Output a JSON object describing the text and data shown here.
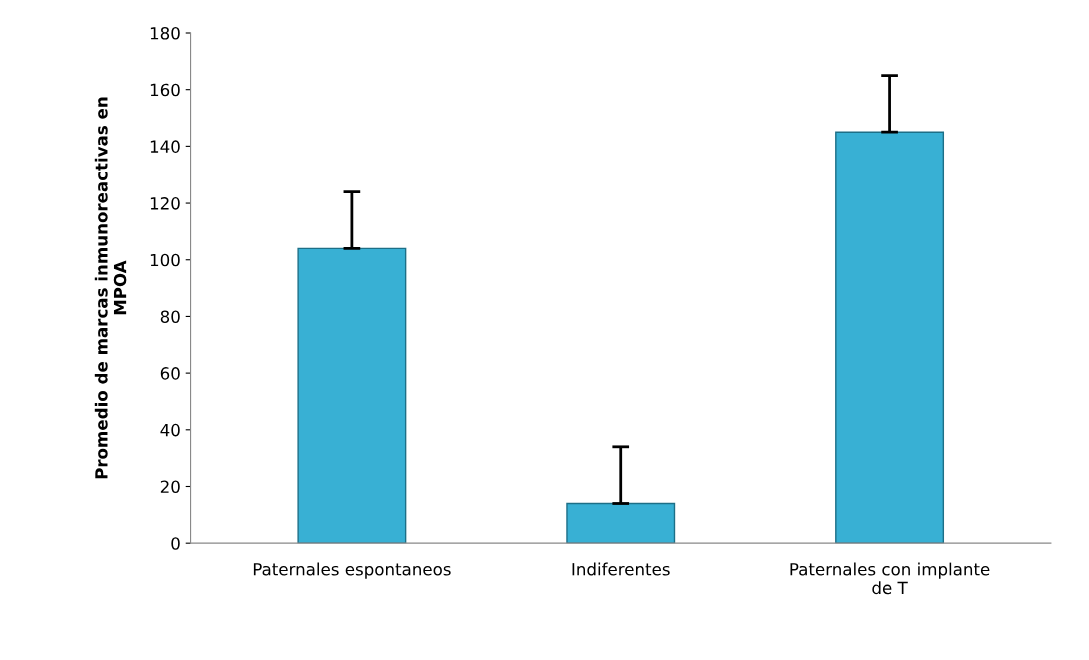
{
  "chart_data": {
    "type": "bar",
    "ylabel": "Promedio de marcas inmunoreactivas en\nMPOA",
    "categories": [
      "Paternales espontaneos",
      "Indiferentes",
      "Paternales con implante\nde T"
    ],
    "values": [
      104,
      14,
      145
    ],
    "errors": [
      [
        104,
        124
      ],
      [
        14,
        34
      ],
      [
        145,
        165
      ]
    ],
    "color": "#38b0d4",
    "ylim": [
      0,
      180
    ],
    "yticks": [
      0,
      20,
      40,
      60,
      80,
      100,
      120,
      140,
      160,
      180
    ],
    "grid": false,
    "legend": false
  }
}
